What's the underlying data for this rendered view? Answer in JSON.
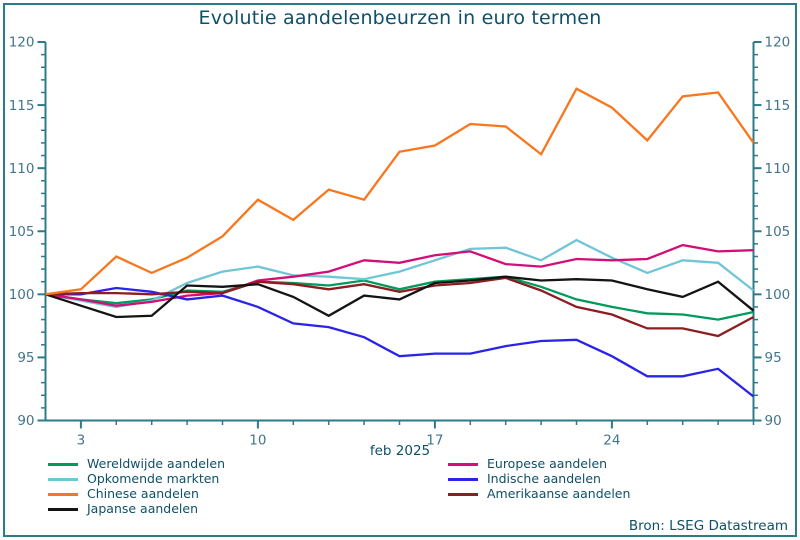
{
  "title": "Evolutie aandelenbeurzen in euro termen",
  "source": "Bron: LSEG Datastream",
  "x_axis_label": "feb 2025",
  "frame_color": "#2D7A8A",
  "axis_color": "#2D7A8A",
  "tick_label_color": "#44758A",
  "text_color": "#0F5068",
  "chart_data": {
    "type": "line",
    "title": "Evolutie aandelenbeurzen in euro termen",
    "xlabel": "feb 2025",
    "ylabel": "",
    "ylim": [
      90,
      120
    ],
    "y_major_step": 5,
    "y_minor_step": 1,
    "grid": false,
    "legend_position": "bottom",
    "x": [
      "31 jan",
      "3 feb",
      "4 feb",
      "5 feb",
      "6 feb",
      "7 feb",
      "10 feb",
      "11 feb",
      "12 feb",
      "13 feb",
      "14 feb",
      "17 feb",
      "18 feb",
      "19 feb",
      "20 feb",
      "21 feb",
      "24 feb",
      "25 feb",
      "26 feb",
      "27 feb",
      "28 feb"
    ],
    "x_major_tick_indices": [
      1,
      6,
      11,
      16
    ],
    "x_major_tick_labels": [
      "3",
      "10",
      "17",
      "24"
    ],
    "series": [
      {
        "name": "Wereldwijde aandelen",
        "color": "#009B5C",
        "values": [
          100,
          99.6,
          99.3,
          99.6,
          100.3,
          100.2,
          101.0,
          100.9,
          100.7,
          101.1,
          100.4,
          101.0,
          101.2,
          101.4,
          100.6,
          99.6,
          99.0,
          98.5,
          98.4,
          98.0,
          98.6
        ]
      },
      {
        "name": "Opkomende markten",
        "color": "#70C6D5",
        "values": [
          100,
          99.5,
          99.0,
          99.5,
          100.9,
          101.8,
          102.2,
          101.5,
          101.4,
          101.2,
          101.8,
          102.7,
          103.6,
          103.7,
          102.7,
          104.3,
          102.9,
          101.7,
          102.7,
          102.5,
          100.3
        ]
      },
      {
        "name": "Chinese aandelen",
        "color": "#F8771E",
        "values": [
          100,
          100.4,
          103.0,
          101.7,
          102.9,
          104.6,
          107.5,
          105.9,
          108.3,
          107.5,
          111.3,
          111.8,
          113.5,
          113.3,
          111.1,
          116.3,
          114.8,
          112.2,
          115.7,
          116.0,
          112.0
        ]
      },
      {
        "name": "Japanse aandelen",
        "color": "#141414",
        "values": [
          100,
          99.1,
          98.2,
          98.3,
          100.7,
          100.6,
          100.8,
          99.8,
          98.3,
          99.9,
          99.6,
          100.9,
          101.1,
          101.4,
          101.1,
          101.2,
          101.1,
          100.4,
          99.8,
          101.0,
          98.7
        ]
      },
      {
        "name": "Europese aandelen",
        "color": "#D40E77",
        "values": [
          100,
          99.6,
          99.1,
          99.4,
          99.9,
          100.1,
          101.1,
          101.4,
          101.8,
          102.7,
          102.5,
          103.1,
          103.4,
          102.4,
          102.2,
          102.8,
          102.7,
          102.8,
          103.9,
          103.4,
          103.5
        ]
      },
      {
        "name": "Indische aandelen",
        "color": "#2A23E8",
        "values": [
          100,
          100.0,
          100.5,
          100.2,
          99.6,
          99.9,
          99.0,
          97.7,
          97.4,
          96.6,
          95.1,
          95.3,
          95.3,
          95.9,
          96.3,
          96.4,
          95.1,
          93.5,
          93.5,
          94.1,
          91.9
        ]
      },
      {
        "name": "Amerikaanse aandelen",
        "color": "#8C1D20",
        "values": [
          100,
          100.1,
          100.1,
          100.0,
          100.2,
          100.1,
          101.0,
          100.8,
          100.4,
          100.8,
          100.2,
          100.7,
          100.9,
          101.3,
          100.3,
          99.0,
          98.4,
          97.3,
          97.3,
          96.7,
          98.2
        ]
      }
    ]
  },
  "legend": {
    "left_column": [
      "Wereldwijde aandelen",
      "Opkomende markten",
      "Chinese aandelen",
      "Japanse aandelen"
    ],
    "right_column": [
      "Europese aandelen",
      "Indische aandelen",
      "Amerikaanse aandelen"
    ]
  }
}
